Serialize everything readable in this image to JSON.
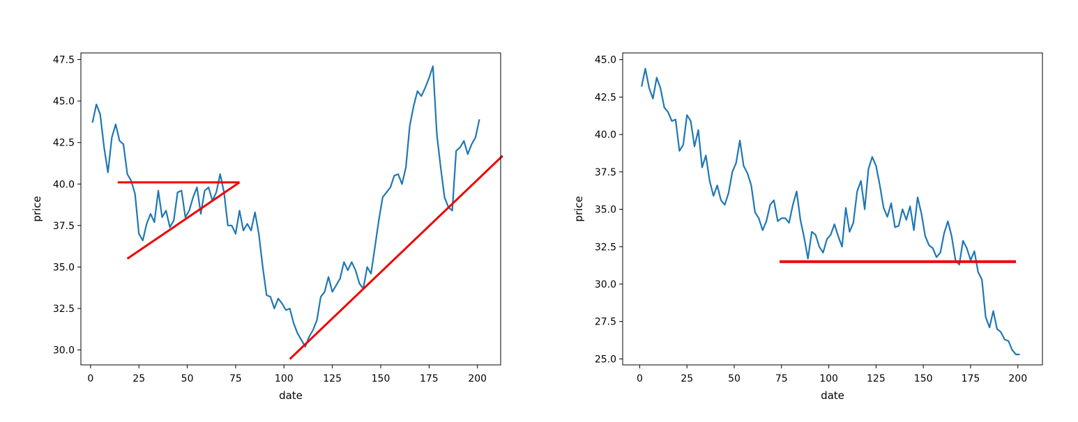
{
  "colors": {
    "line": "#1f77b4",
    "annotation": "#ee0000",
    "frame": "#000000"
  },
  "chart_data": [
    {
      "type": "line",
      "xlabel": "date",
      "ylabel": "price",
      "xlim": [
        -5,
        212
      ],
      "ylim": [
        29.1,
        47.9
      ],
      "xticks": [
        0,
        25,
        50,
        75,
        100,
        125,
        150,
        175,
        200
      ],
      "yticks": [
        30.0,
        32.5,
        35.0,
        37.5,
        40.0,
        42.5,
        45.0,
        47.5
      ],
      "grid": false,
      "series": [
        {
          "x": [
            1,
            3,
            5,
            7,
            9,
            11,
            13,
            15,
            17,
            19,
            21,
            23,
            25,
            27,
            29,
            31,
            33,
            35,
            37,
            39,
            41,
            43,
            45,
            47,
            49,
            51,
            53,
            55,
            57,
            59,
            61,
            63,
            65,
            67,
            69,
            71,
            73,
            75,
            77,
            79,
            81,
            83,
            85,
            87,
            89,
            91,
            93,
            95,
            97,
            99,
            101,
            103,
            105,
            107,
            109,
            111,
            113,
            115,
            117,
            119,
            121,
            123,
            125,
            127,
            129,
            131,
            133,
            135,
            137,
            139,
            141,
            143,
            145,
            147,
            149,
            151,
            153,
            155,
            157,
            159,
            161,
            163,
            165,
            167,
            169,
            171,
            173,
            175,
            177,
            179,
            181,
            183,
            185,
            187,
            189,
            191,
            193,
            195,
            197,
            199,
            201
          ],
          "values": [
            43.7,
            44.8,
            44.2,
            42.2,
            40.7,
            42.8,
            43.6,
            42.6,
            42.4,
            40.6,
            40.2,
            39.4,
            37.0,
            36.6,
            37.6,
            38.2,
            37.7,
            39.6,
            38.0,
            38.4,
            37.4,
            37.8,
            39.5,
            39.6,
            38.0,
            38.4,
            39.2,
            39.8,
            38.2,
            39.6,
            39.8,
            39.0,
            39.5,
            40.6,
            39.5,
            37.5,
            37.5,
            37.0,
            38.4,
            37.2,
            37.6,
            37.2,
            38.3,
            37.0,
            35.0,
            33.3,
            33.2,
            32.5,
            33.1,
            32.8,
            32.4,
            32.5,
            31.6,
            31.0,
            30.6,
            30.2,
            30.8,
            31.2,
            31.8,
            33.2,
            33.5,
            34.4,
            33.5,
            33.9,
            34.3,
            35.3,
            34.8,
            35.3,
            34.8,
            34.0,
            33.7,
            35.0,
            34.6,
            36.2,
            37.8,
            39.2,
            39.5,
            39.8,
            40.5,
            40.6,
            40.0,
            41.0,
            43.5,
            44.7,
            45.6,
            45.3,
            45.8,
            46.4,
            47.1,
            43.0,
            41.0,
            39.2,
            38.6,
            38.4,
            42.0,
            42.2,
            42.6,
            41.8,
            42.4,
            42.8,
            43.9
          ]
        }
      ],
      "annotations": [
        {
          "kind": "segment",
          "x1": 14,
          "y1": 40.1,
          "x2": 77,
          "y2": 40.1
        },
        {
          "kind": "segment",
          "x1": 19,
          "y1": 35.5,
          "x2": 77,
          "y2": 40.1
        },
        {
          "kind": "segment",
          "x1": 103,
          "y1": 29.45,
          "x2": 213,
          "y2": 41.7
        }
      ]
    },
    {
      "type": "line",
      "xlabel": "date",
      "ylabel": "price",
      "xlim": [
        -9,
        213
      ],
      "ylim": [
        24.6,
        45.45
      ],
      "xticks": [
        0,
        25,
        50,
        75,
        100,
        125,
        150,
        175,
        200
      ],
      "yticks": [
        25.0,
        27.5,
        30.0,
        32.5,
        35.0,
        37.5,
        40.0,
        42.5,
        45.0
      ],
      "grid": false,
      "series": [
        {
          "x": [
            1,
            3,
            5,
            7,
            9,
            11,
            13,
            15,
            17,
            19,
            21,
            23,
            25,
            27,
            29,
            31,
            33,
            35,
            37,
            39,
            41,
            43,
            45,
            47,
            49,
            51,
            53,
            55,
            57,
            59,
            61,
            63,
            65,
            67,
            69,
            71,
            73,
            75,
            77,
            79,
            81,
            83,
            85,
            87,
            89,
            91,
            93,
            95,
            97,
            99,
            101,
            103,
            105,
            107,
            109,
            111,
            113,
            115,
            117,
            119,
            121,
            123,
            125,
            127,
            129,
            131,
            133,
            135,
            137,
            139,
            141,
            143,
            145,
            147,
            149,
            151,
            153,
            155,
            157,
            159,
            161,
            163,
            165,
            167,
            169,
            171,
            173,
            175,
            177,
            179,
            181,
            183,
            185,
            187,
            189,
            191,
            193,
            195,
            197,
            199,
            201
          ],
          "values": [
            43.2,
            44.4,
            43.1,
            42.4,
            43.8,
            43.1,
            41.8,
            41.5,
            40.9,
            41.0,
            38.9,
            39.3,
            41.3,
            40.9,
            39.2,
            40.3,
            37.8,
            38.6,
            36.9,
            35.9,
            36.6,
            35.6,
            35.3,
            36.1,
            37.5,
            38.1,
            39.6,
            37.9,
            37.4,
            36.6,
            34.8,
            34.4,
            33.6,
            34.2,
            35.3,
            35.6,
            34.2,
            34.4,
            34.4,
            34.1,
            35.3,
            36.2,
            34.3,
            33.1,
            31.7,
            33.5,
            33.3,
            32.5,
            32.1,
            33.0,
            33.3,
            34.0,
            33.2,
            32.5,
            35.1,
            33.5,
            34.1,
            36.2,
            36.9,
            35.0,
            37.7,
            38.5,
            37.9,
            36.6,
            35.1,
            34.5,
            35.4,
            33.8,
            33.9,
            35.0,
            34.3,
            35.2,
            33.6,
            35.8,
            34.7,
            33.2,
            32.6,
            32.4,
            31.8,
            32.1,
            33.4,
            34.2,
            33.2,
            31.6,
            31.3,
            32.9,
            32.4,
            31.6,
            32.2,
            30.8,
            30.3,
            27.8,
            27.1,
            28.2,
            27.0,
            26.8,
            26.3,
            26.2,
            25.6,
            25.3,
            25.3
          ]
        }
      ],
      "annotations": [
        {
          "kind": "segment",
          "x1": 74,
          "y1": 31.5,
          "x2": 199,
          "y2": 31.5
        }
      ]
    }
  ]
}
